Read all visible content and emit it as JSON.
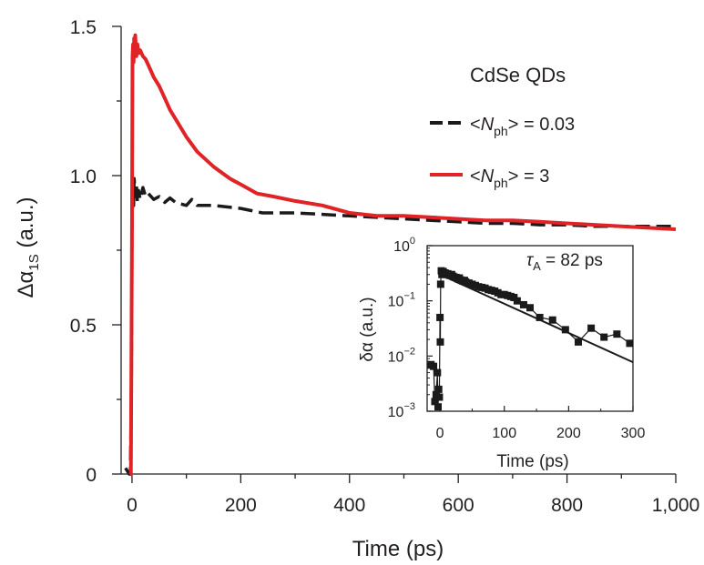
{
  "chart_data": [
    {
      "type": "line",
      "title": "CdSe QDs",
      "xlabel": "Time (ps)",
      "ylabel_main": "Δα",
      "ylabel_sub": "1S",
      "ylabel_unit": " (a.u.)",
      "xlim": [
        -20,
        1000
      ],
      "ylim": [
        0,
        1.5
      ],
      "x_ticks": [
        0,
        200,
        400,
        600,
        800,
        1000
      ],
      "x_tick_labels": [
        "0",
        "200",
        "400",
        "600",
        "800",
        "1,000"
      ],
      "y_ticks": [
        0,
        0.5,
        1.0,
        1.5
      ],
      "y_tick_labels": [
        "0",
        "0.5",
        "1.0",
        "1.5"
      ],
      "legend_position": "top-right",
      "series": [
        {
          "name": "<Nph> = 0.03",
          "label_pre": "<",
          "label_italic": "N",
          "label_sub": "ph",
          "label_post": "> = 0.03",
          "color": "#1a1a1a",
          "style": "dashed",
          "x": [
            -12,
            -5,
            -3,
            -1,
            0,
            1,
            2,
            3,
            4,
            6,
            8,
            10,
            12,
            15,
            20,
            25,
            30,
            40,
            50,
            60,
            70,
            80,
            90,
            100,
            110,
            120,
            150,
            200,
            240,
            300,
            350,
            400,
            450,
            500,
            550,
            600,
            650,
            700,
            750,
            800,
            850,
            900,
            950,
            1000
          ],
          "y": [
            0.02,
            0.0,
            0.01,
            0.3,
            0.8,
            0.92,
            0.97,
            0.9,
            0.99,
            0.93,
            0.97,
            0.91,
            0.95,
            0.92,
            0.96,
            0.93,
            0.94,
            0.92,
            0.93,
            0.91,
            0.925,
            0.91,
            0.905,
            0.9,
            0.92,
            0.9,
            0.9,
            0.89,
            0.875,
            0.875,
            0.87,
            0.865,
            0.86,
            0.855,
            0.85,
            0.845,
            0.84,
            0.84,
            0.835,
            0.835,
            0.83,
            0.83,
            0.83,
            0.83
          ]
        },
        {
          "name": "<Nph> = 3",
          "label_pre": "<",
          "label_italic": "N",
          "label_sub": "ph",
          "label_post": "> = 3",
          "color": "#e02326",
          "style": "solid",
          "x": [
            -4,
            -3,
            -2,
            0,
            1,
            2,
            3,
            4,
            5,
            6,
            8,
            10,
            12,
            15,
            20,
            25,
            30,
            40,
            50,
            60,
            70,
            80,
            100,
            120,
            150,
            180,
            200,
            230,
            260,
            300,
            350,
            400,
            450,
            500,
            550,
            600,
            650,
            700,
            750,
            800,
            850,
            900,
            950,
            1000
          ],
          "y": [
            0.0,
            0.0,
            0.0,
            0.8,
            1.4,
            1.44,
            1.38,
            1.46,
            1.42,
            1.47,
            1.4,
            1.44,
            1.41,
            1.42,
            1.4,
            1.39,
            1.37,
            1.33,
            1.3,
            1.26,
            1.22,
            1.19,
            1.13,
            1.08,
            1.03,
            0.99,
            0.97,
            0.94,
            0.93,
            0.915,
            0.9,
            0.875,
            0.865,
            0.865,
            0.86,
            0.855,
            0.85,
            0.85,
            0.845,
            0.84,
            0.835,
            0.83,
            0.825,
            0.82
          ]
        }
      ]
    },
    {
      "type": "scatter",
      "title": "",
      "xlabel": "Time (ps)",
      "ylabel": "δα (a.u.)",
      "yscale": "log",
      "xlim": [
        -20,
        300
      ],
      "ylim": [
        0.001,
        1
      ],
      "x_ticks": [
        0,
        100,
        200,
        300
      ],
      "x_tick_labels": [
        "0",
        "100",
        "200",
        "300"
      ],
      "y_ticks": [
        0.001,
        0.01,
        0.1,
        1
      ],
      "y_tick_base": "10",
      "y_tick_exponents": [
        "−3",
        "−2",
        "−1",
        "0"
      ],
      "annotation_symbol": "τ",
      "annotation_sub": "A",
      "annotation_text": " = 82 ps",
      "tau_ps": 82,
      "fit": {
        "x": [
          0,
          300
        ],
        "A": 0.3,
        "tau": 82
      },
      "points": {
        "x": [
          -14,
          -10,
          -8,
          -6,
          -4,
          -3,
          -2,
          -1,
          0,
          0.5,
          1,
          2,
          3,
          5,
          8,
          10,
          12,
          15,
          18,
          20,
          22,
          25,
          28,
          30,
          32,
          35,
          38,
          40,
          45,
          50,
          55,
          60,
          65,
          70,
          75,
          80,
          85,
          90,
          95,
          100,
          105,
          110,
          115,
          120,
          130,
          140,
          155,
          175,
          195,
          215,
          235,
          255,
          275,
          295
        ],
        "y": [
          0.007,
          0.0065,
          0.0015,
          0.002,
          0.005,
          0.0012,
          0.0025,
          0.0018,
          0.05,
          0.018,
          0.2,
          0.35,
          0.3,
          0.34,
          0.32,
          0.3,
          0.31,
          0.29,
          0.3,
          0.28,
          0.27,
          0.265,
          0.25,
          0.26,
          0.24,
          0.23,
          0.235,
          0.22,
          0.21,
          0.2,
          0.19,
          0.18,
          0.175,
          0.17,
          0.16,
          0.155,
          0.15,
          0.14,
          0.13,
          0.13,
          0.125,
          0.12,
          0.115,
          0.1,
          0.085,
          0.075,
          0.05,
          0.045,
          0.03,
          0.018,
          0.032,
          0.022,
          0.025,
          0.017
        ]
      }
    }
  ]
}
